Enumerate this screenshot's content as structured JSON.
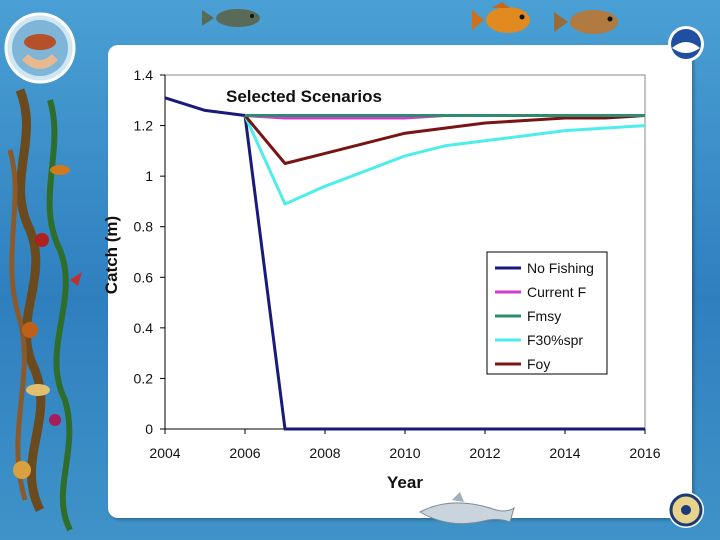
{
  "colors": {
    "background": "#3d8fc4",
    "plot_area": "#ffffff",
    "No Fishing": "#1a1a7a",
    "Current F": "#d23ad2",
    "Fmsy": "#2e8b6e",
    "F30%spr": "#4dedec",
    "Foy": "#7a1414"
  },
  "icons": [
    "hands-fish-emblem-icon",
    "fish-icon",
    "noaa-logo-icon",
    "dolphin-icon",
    "commerce-seal-icon",
    "kelp-border-icon"
  ],
  "chart_data": {
    "type": "line",
    "title": "Selected Scenarios",
    "xlabel": "Year",
    "ylabel": "Catch (m)",
    "xlim": [
      2004,
      2016
    ],
    "ylim": [
      0,
      1.4
    ],
    "x_ticks": [
      "2004",
      "2006",
      "2008",
      "2010",
      "2012",
      "2014",
      "2016"
    ],
    "y_ticks": [
      "0",
      "0.2",
      "0.4",
      "0.6",
      "0.8",
      "1",
      "1.2",
      "1.4"
    ],
    "x_tick_values": [
      2004,
      2006,
      2008,
      2010,
      2012,
      2014,
      2016
    ],
    "y_tick_values": [
      0,
      0.2,
      0.4,
      0.6,
      0.8,
      1.0,
      1.2,
      1.4
    ],
    "grid": false,
    "legend_position": "lower-right",
    "series": [
      {
        "name": "No Fishing",
        "x": [
          2004,
          2005,
          2006,
          2007,
          2008,
          2009,
          2010,
          2011,
          2012,
          2013,
          2014,
          2015,
          2016
        ],
        "y": [
          1.31,
          1.26,
          1.24,
          0,
          0,
          0,
          0,
          0,
          0,
          0,
          0,
          0,
          0
        ]
      },
      {
        "name": "Current F",
        "x": [
          2006,
          2007,
          2008,
          2009,
          2010,
          2011,
          2012,
          2013,
          2014,
          2015,
          2016
        ],
        "y": [
          1.24,
          1.23,
          1.23,
          1.23,
          1.23,
          1.24,
          1.24,
          1.24,
          1.24,
          1.24,
          1.24
        ]
      },
      {
        "name": "Fmsy",
        "x": [
          2006,
          2007,
          2008,
          2009,
          2010,
          2011,
          2012,
          2013,
          2014,
          2015,
          2016
        ],
        "y": [
          1.24,
          1.24,
          1.24,
          1.24,
          1.24,
          1.24,
          1.24,
          1.24,
          1.24,
          1.24,
          1.24
        ]
      },
      {
        "name": "F30%spr",
        "x": [
          2006,
          2007,
          2008,
          2009,
          2010,
          2011,
          2012,
          2013,
          2014,
          2015,
          2016
        ],
        "y": [
          1.24,
          0.89,
          0.96,
          1.02,
          1.08,
          1.12,
          1.14,
          1.16,
          1.18,
          1.19,
          1.2
        ]
      },
      {
        "name": "Foy",
        "x": [
          2006,
          2007,
          2008,
          2009,
          2010,
          2011,
          2012,
          2013,
          2014,
          2015,
          2016
        ],
        "y": [
          1.24,
          1.05,
          1.09,
          1.13,
          1.17,
          1.19,
          1.21,
          1.22,
          1.23,
          1.23,
          1.24
        ]
      }
    ]
  }
}
